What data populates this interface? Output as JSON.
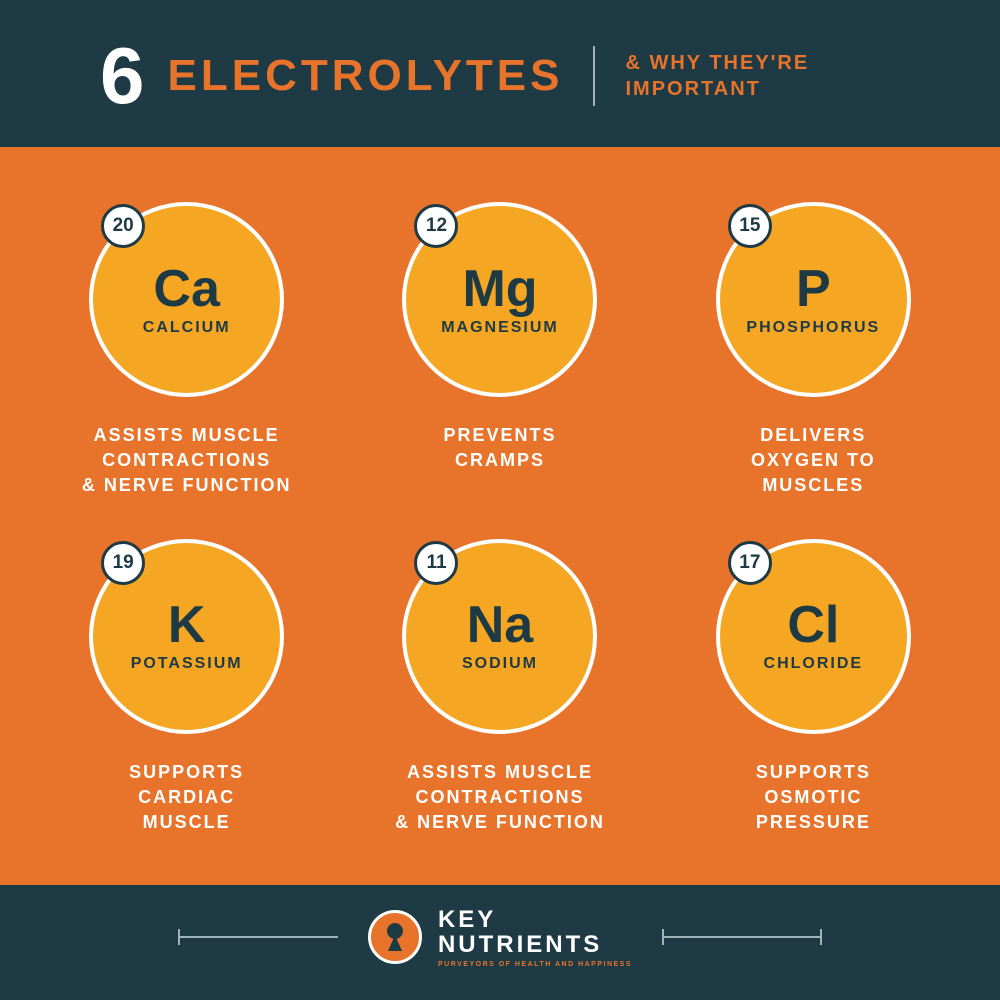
{
  "header": {
    "number": "6",
    "title": "ELECTROLYTES",
    "subtitle": "& WHY THEY'RE\nIMPORTANT"
  },
  "colors": {
    "background": "#1e3a44",
    "accent": "#e8742c",
    "circle_fill": "#f5a623",
    "circle_border": "#ffffff",
    "text_dark": "#1e3a44",
    "text_light": "#ffffff"
  },
  "elements": [
    {
      "atomic": "20",
      "symbol": "Ca",
      "name": "CALCIUM",
      "desc": "ASSISTS MUSCLE\nCONTRACTIONS\n& NERVE FUNCTION"
    },
    {
      "atomic": "12",
      "symbol": "Mg",
      "name": "MAGNESIUM",
      "desc": "PREVENTS\nCRAMPS"
    },
    {
      "atomic": "15",
      "symbol": "P",
      "name": "PHOSPHORUS",
      "desc": "DELIVERS\nOXYGEN TO\nMUSCLES"
    },
    {
      "atomic": "19",
      "symbol": "K",
      "name": "POTASSIUM",
      "desc": "SUPPORTS\nCARDIAC\nMUSCLE"
    },
    {
      "atomic": "11",
      "symbol": "Na",
      "name": "SODIUM",
      "desc": "ASSISTS MUSCLE\nCONTRACTIONS\n& NERVE FUNCTION"
    },
    {
      "atomic": "17",
      "symbol": "Cl",
      "name": "CHLORIDE",
      "desc": "SUPPORTS\nOSMOTIC\nPRESSURE"
    }
  ],
  "footer": {
    "brand_line1": "KEY",
    "brand_line2": "NUTRIENTS",
    "tagline": "PURVEYORS OF HEALTH AND HAPPINESS"
  }
}
